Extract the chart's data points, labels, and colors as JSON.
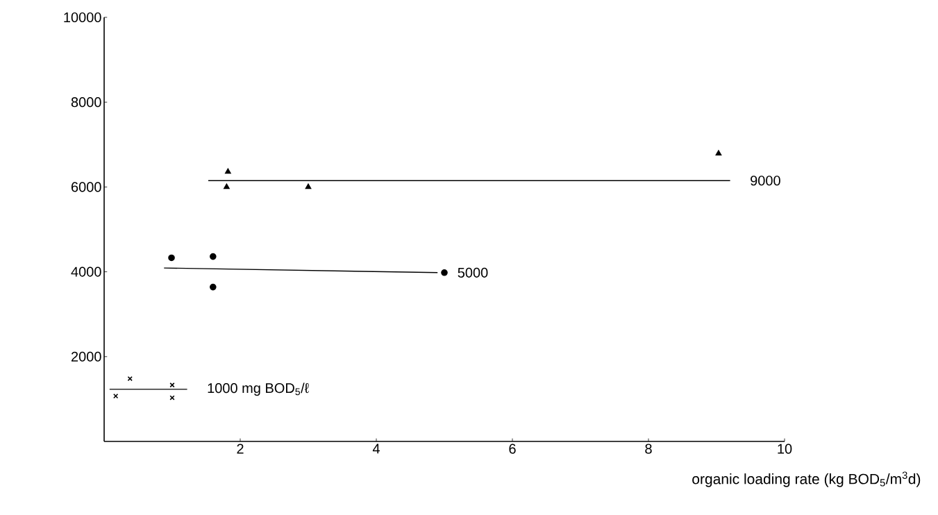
{
  "chart_data": {
    "type": "scatter",
    "xlabel": "organic loading rate (kg BOD$_{5}$/m$^{3}$d)",
    "xlim": [
      0,
      10
    ],
    "ylim": [
      0,
      10000
    ],
    "xticks": [
      2,
      4,
      6,
      8,
      10
    ],
    "yticks": [
      2000,
      4000,
      6000,
      8000,
      10000
    ],
    "grid": false,
    "series": [
      {
        "color": "#000000",
        "marker": "cross",
        "x": [
          0.17,
          0.38,
          1.0,
          1.0
        ],
        "values": [
          1070,
          1480,
          1330,
          1030
        ]
      },
      {
        "color": "#000000",
        "marker": "circle",
        "x": [
          0.99,
          1.6,
          1.6,
          5.0
        ],
        "values": [
          4330,
          4360,
          3640,
          3980
        ]
      },
      {
        "color": "#000000",
        "marker": "triangle",
        "x": [
          1.82,
          1.8,
          3.0,
          9.03
        ],
        "values": [
          6360,
          6000,
          6000,
          6790
        ]
      },
      {
        "type": "line",
        "color": "#000000",
        "x": [
          0.08,
          1.22
        ],
        "values": [
          1230,
          1230
        ]
      },
      {
        "type": "line",
        "color": "#000000",
        "x": [
          0.88,
          4.9
        ],
        "values": [
          4090,
          3980
        ]
      },
      {
        "type": "line",
        "color": "#000000",
        "x": [
          1.53,
          9.2
        ],
        "values": [
          6150,
          6150
        ]
      }
    ],
    "annotations": [
      "1000 mg BOD$_{5}$/ℓ",
      "5000",
      "9000"
    ]
  }
}
